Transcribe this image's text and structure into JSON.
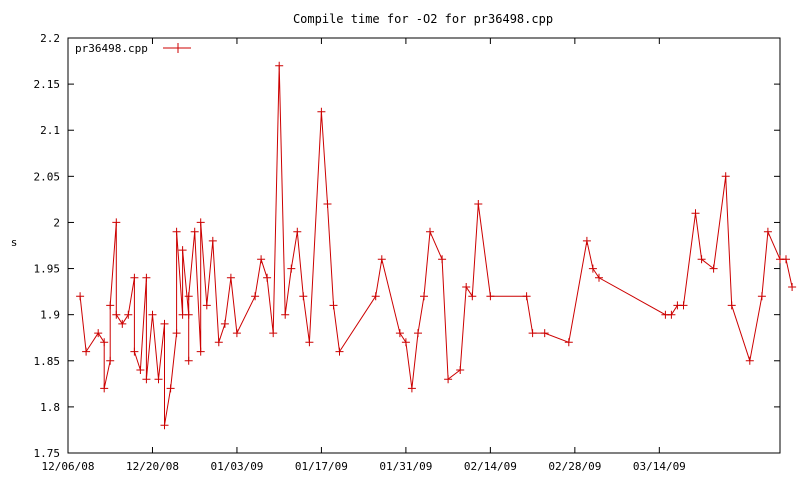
{
  "chart_data": {
    "type": "line",
    "title": "Compile time for -O2 for pr36498.cpp",
    "xlabel": "",
    "ylabel": "s",
    "ylim": [
      1.75,
      2.2
    ],
    "xlim": [
      "2008-12-06",
      "2009-04-03"
    ],
    "x_ticks": [
      "12/06/08",
      "12/20/08",
      "01/03/09",
      "01/17/09",
      "01/31/09",
      "02/14/09",
      "02/28/09",
      "03/14/09"
    ],
    "y_ticks": [
      "1.75",
      "1.8",
      "1.85",
      "1.9",
      "1.95",
      "2",
      "2.05",
      "2.1",
      "2.15",
      "2.2"
    ],
    "legend_position": "top-left",
    "grid": false,
    "series": [
      {
        "name": "pr36498.cpp",
        "color": "#cc0000",
        "marker": "plus",
        "points": [
          [
            "2008-12-08",
            1.92
          ],
          [
            "2008-12-09",
            1.86
          ],
          [
            "2008-12-11",
            1.88
          ],
          [
            "2008-12-12",
            1.87
          ],
          [
            "2008-12-12",
            1.82
          ],
          [
            "2008-12-13",
            1.85
          ],
          [
            "2008-12-13",
            1.91
          ],
          [
            "2008-12-14",
            2.0
          ],
          [
            "2008-12-14",
            1.9
          ],
          [
            "2008-12-15",
            1.89
          ],
          [
            "2008-12-16",
            1.9
          ],
          [
            "2008-12-17",
            1.94
          ],
          [
            "2008-12-17",
            1.86
          ],
          [
            "2008-12-18",
            1.84
          ],
          [
            "2008-12-19",
            1.94
          ],
          [
            "2008-12-19",
            1.83
          ],
          [
            "2008-12-20",
            1.9
          ],
          [
            "2008-12-21",
            1.83
          ],
          [
            "2008-12-22",
            1.89
          ],
          [
            "2008-12-22",
            1.78
          ],
          [
            "2008-12-23",
            1.82
          ],
          [
            "2008-12-24",
            1.88
          ],
          [
            "2008-12-24",
            1.99
          ],
          [
            "2008-12-25",
            1.9
          ],
          [
            "2008-12-25",
            1.97
          ],
          [
            "2008-12-26",
            1.9
          ],
          [
            "2008-12-26",
            1.85
          ],
          [
            "2008-12-26",
            1.92
          ],
          [
            "2008-12-27",
            1.99
          ],
          [
            "2008-12-28",
            1.86
          ],
          [
            "2008-12-28",
            2.0
          ],
          [
            "2008-12-29",
            1.91
          ],
          [
            "2008-12-30",
            1.98
          ],
          [
            "2008-12-31",
            1.87
          ],
          [
            "2009-01-01",
            1.89
          ],
          [
            "2009-01-02",
            1.94
          ],
          [
            "2009-01-03",
            1.88
          ],
          [
            "2009-01-06",
            1.92
          ],
          [
            "2009-01-07",
            1.96
          ],
          [
            "2009-01-08",
            1.94
          ],
          [
            "2009-01-09",
            1.88
          ],
          [
            "2009-01-10",
            2.17
          ],
          [
            "2009-01-11",
            1.9
          ],
          [
            "2009-01-12",
            1.95
          ],
          [
            "2009-01-13",
            1.99
          ],
          [
            "2009-01-14",
            1.92
          ],
          [
            "2009-01-15",
            1.87
          ],
          [
            "2009-01-17",
            2.12
          ],
          [
            "2009-01-18",
            2.02
          ],
          [
            "2009-01-19",
            1.91
          ],
          [
            "2009-01-20",
            1.86
          ],
          [
            "2009-01-26",
            1.92
          ],
          [
            "2009-01-27",
            1.96
          ],
          [
            "2009-01-30",
            1.88
          ],
          [
            "2009-01-31",
            1.87
          ],
          [
            "2009-02-01",
            1.82
          ],
          [
            "2009-02-02",
            1.88
          ],
          [
            "2009-02-03",
            1.92
          ],
          [
            "2009-02-04",
            1.99
          ],
          [
            "2009-02-06",
            1.96
          ],
          [
            "2009-02-07",
            1.83
          ],
          [
            "2009-02-09",
            1.84
          ],
          [
            "2009-02-10",
            1.93
          ],
          [
            "2009-02-11",
            1.92
          ],
          [
            "2009-02-12",
            2.02
          ],
          [
            "2009-02-14",
            1.92
          ],
          [
            "2009-02-20",
            1.92
          ],
          [
            "2009-02-21",
            1.88
          ],
          [
            "2009-02-23",
            1.88
          ],
          [
            "2009-02-27",
            1.87
          ],
          [
            "2009-03-02",
            1.98
          ],
          [
            "2009-03-03",
            1.95
          ],
          [
            "2009-03-04",
            1.94
          ],
          [
            "2009-03-15",
            1.9
          ],
          [
            "2009-03-16",
            1.9
          ],
          [
            "2009-03-17",
            1.91
          ],
          [
            "2009-03-18",
            1.91
          ],
          [
            "2009-03-20",
            2.01
          ],
          [
            "2009-03-21",
            1.96
          ],
          [
            "2009-03-23",
            1.95
          ],
          [
            "2009-03-25",
            2.05
          ],
          [
            "2009-03-26",
            1.91
          ],
          [
            "2009-03-29",
            1.85
          ],
          [
            "2009-03-31",
            1.92
          ],
          [
            "2009-04-01",
            1.99
          ],
          [
            "2009-04-03",
            1.96
          ],
          [
            "2009-04-04",
            1.96
          ],
          [
            "2009-04-05",
            1.93
          ]
        ]
      }
    ]
  }
}
